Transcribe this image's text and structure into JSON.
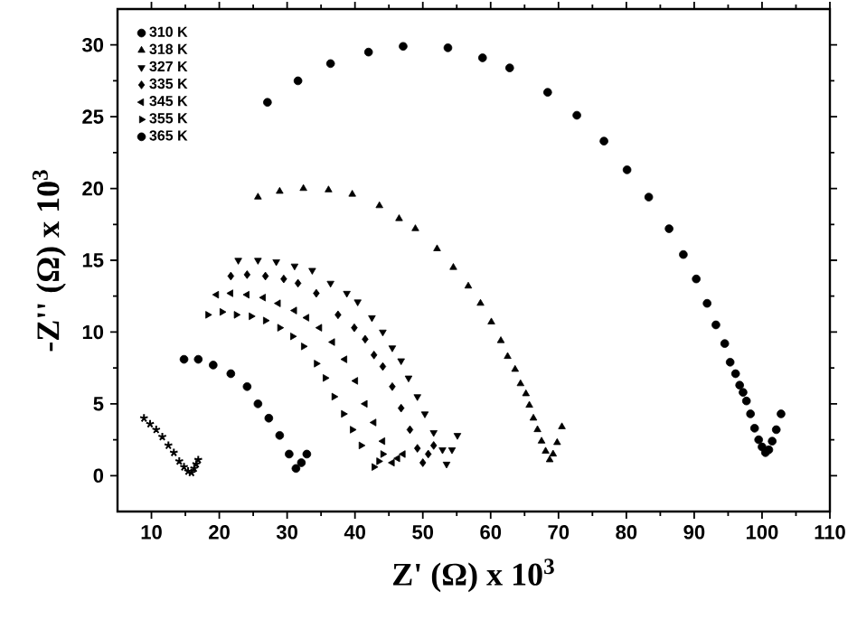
{
  "chart_data": {
    "type": "scatter",
    "xlabel": "Z' (Ω) x 10$^{3}$",
    "ylabel": "-Z'' (Ω) x 10$^{3}$",
    "xlim": [
      5,
      110
    ],
    "ylim": [
      -2.5,
      32.5
    ],
    "xticks": [
      10,
      20,
      30,
      40,
      50,
      60,
      70,
      80,
      90,
      100,
      110
    ],
    "yticks": [
      0,
      5,
      10,
      15,
      20,
      25,
      30
    ],
    "legend": "top left",
    "grid": false,
    "series": [
      {
        "name": "310 K",
        "color": "#000000",
        "marker": "circle",
        "x": [
          27.1,
          31.6,
          36.4,
          42.0,
          47.1,
          53.7,
          58.8,
          62.8,
          68.4,
          72.7,
          76.7,
          80.1,
          83.3,
          86.3,
          88.4,
          90.3,
          91.9,
          93.2,
          94.5,
          95.3,
          96.1,
          96.7,
          97.2,
          97.7,
          98.3,
          98.9,
          99.5,
          100.0,
          100.5,
          101.0,
          101.5,
          102.1,
          102.8
        ],
        "values": [
          26.0,
          27.5,
          28.7,
          29.5,
          29.9,
          29.8,
          29.1,
          28.4,
          26.7,
          25.1,
          23.3,
          21.3,
          19.4,
          17.2,
          15.4,
          13.7,
          12.0,
          10.5,
          9.2,
          7.9,
          7.1,
          6.3,
          5.8,
          5.2,
          4.3,
          3.3,
          2.5,
          2.0,
          1.6,
          1.8,
          2.4,
          3.2,
          4.3
        ]
      },
      {
        "name": "318 K",
        "color": "#000000",
        "marker": "triangle",
        "x": [
          25.7,
          28.9,
          32.4,
          36.1,
          39.6,
          43.6,
          46.5,
          48.9,
          52.1,
          54.5,
          56.7,
          58.5,
          60.1,
          61.5,
          62.5,
          63.6,
          64.4,
          65.2,
          65.7,
          66.3,
          66.9,
          67.5,
          68.1,
          68.7,
          69.2,
          69.8,
          70.5
        ],
        "values": [
          19.4,
          19.8,
          20.0,
          19.9,
          19.6,
          18.8,
          17.9,
          17.2,
          15.8,
          14.5,
          13.2,
          12.0,
          10.7,
          9.4,
          8.3,
          7.4,
          6.4,
          5.7,
          4.9,
          4.0,
          3.2,
          2.4,
          1.7,
          1.1,
          1.5,
          2.3,
          3.4
        ]
      },
      {
        "name": "327 K",
        "color": "#000000",
        "marker": "triangle-down",
        "x": [
          22.8,
          25.7,
          28.4,
          31.1,
          33.7,
          36.4,
          38.8,
          40.4,
          42.5,
          44.1,
          45.5,
          46.8,
          47.9,
          49.2,
          50.3,
          51.6,
          52.9,
          53.5,
          54.3,
          55.1
        ],
        "values": [
          15.0,
          15.0,
          14.9,
          14.6,
          14.3,
          13.4,
          12.7,
          12.1,
          11.0,
          10.0,
          8.9,
          8.0,
          6.8,
          5.5,
          4.3,
          3.0,
          1.8,
          0.8,
          1.8,
          2.8
        ]
      },
      {
        "name": "335 K",
        "color": "#000000",
        "marker": "diamond",
        "x": [
          21.7,
          24.1,
          26.8,
          29.5,
          31.6,
          34.3,
          37.5,
          39.9,
          41.5,
          42.8,
          44.1,
          45.5,
          46.8,
          48.1,
          49.2,
          50.0,
          50.8,
          51.6
        ],
        "values": [
          13.9,
          14.0,
          13.9,
          13.7,
          13.4,
          12.7,
          11.2,
          10.3,
          9.5,
          8.4,
          7.6,
          6.2,
          4.7,
          3.2,
          1.9,
          0.9,
          1.5,
          2.1
        ]
      },
      {
        "name": "345 K",
        "color": "#000000",
        "marker": "triangle-left",
        "x": [
          19.6,
          21.7,
          24.1,
          26.5,
          28.7,
          31.1,
          32.9,
          34.8,
          36.7,
          38.5,
          40.1,
          41.5,
          42.8,
          44.1,
          45.5,
          46.3,
          47.1
        ],
        "values": [
          12.6,
          12.7,
          12.6,
          12.4,
          12.0,
          11.5,
          11.0,
          10.3,
          9.3,
          8.1,
          6.6,
          5.0,
          3.7,
          2.4,
          0.9,
          1.2,
          1.5
        ]
      },
      {
        "name": "355 K",
        "color": "#000000",
        "marker": "triangle-right",
        "x": [
          18.3,
          20.4,
          22.5,
          24.7,
          26.8,
          28.9,
          30.8,
          32.4,
          34.3,
          35.6,
          36.9,
          38.3,
          39.6,
          40.9,
          42.8,
          43.5,
          44.1
        ],
        "values": [
          11.2,
          11.4,
          11.2,
          11.1,
          10.8,
          10.3,
          9.7,
          9.0,
          7.8,
          6.8,
          5.5,
          4.3,
          3.2,
          2.1,
          0.6,
          1.0,
          1.5
        ]
      },
      {
        "name": "365 K",
        "color": "#000000",
        "marker": "circle",
        "x": [
          14.8,
          16.9,
          19.1,
          21.7,
          24.1,
          25.7,
          27.3,
          28.9,
          30.3,
          31.3,
          32.1,
          32.9
        ],
        "values": [
          8.1,
          8.1,
          7.7,
          7.1,
          6.2,
          5.0,
          4.0,
          2.8,
          1.5,
          0.5,
          0.9,
          1.5
        ]
      },
      {
        "color": "#000000",
        "marker": "cross",
        "x": [
          8.9,
          9.8,
          10.7,
          11.6,
          12.5,
          13.3,
          14.1,
          14.8,
          15.4,
          15.9,
          16.3,
          16.6,
          16.9
        ],
        "values": [
          4.0,
          3.6,
          3.2,
          2.7,
          2.1,
          1.6,
          1.0,
          0.6,
          0.3,
          0.2,
          0.5,
          0.8,
          1.1
        ]
      }
    ]
  }
}
